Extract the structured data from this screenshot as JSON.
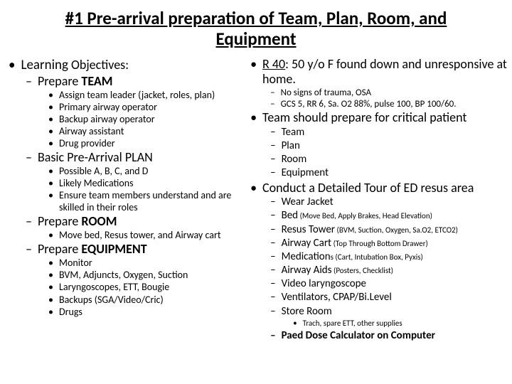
{
  "title": "#1 Pre-arrival preparation of Team, Plan, Room, and Equipment",
  "left": {
    "heading_prefix": "Learning",
    "heading_suffix": " Objectives:",
    "team": {
      "label_prefix": "Prepare ",
      "label_bold": "TEAM",
      "items": [
        "Assign team leader (jacket, roles, plan)",
        "Primary airway operator",
        "Backup airway operator",
        "Airway assistant",
        "Drug provider"
      ]
    },
    "plan": {
      "label": "Basic Pre-Arrival PLAN",
      "items": [
        "Possible A, B, C, and D",
        "Likely Medications",
        "Ensure team members understand and are skilled in their roles"
      ]
    },
    "room": {
      "label_prefix": "Prepare ",
      "label_bold": "ROOM",
      "items": [
        "Move bed, Resus tower, and Airway cart"
      ]
    },
    "equip": {
      "label_prefix": "Prepare ",
      "label_bold": "EQUIPMENT",
      "items": [
        "Monitor",
        "BVM, Adjuncts, Oxygen, Suction",
        "Laryngoscopes, ETT, Bougie",
        "Backups (SGA/Video/Cric)",
        "Drugs"
      ]
    }
  },
  "right": {
    "case": {
      "label_u": "R 40",
      "label_rest": ": 50 y/o F found down and unresponsive at home.",
      "subs": [
        "No signs of trauma, OSA",
        "GCS 5, RR 6, Sa. O2 88%, pulse 100, BP 100/60."
      ]
    },
    "prepare": {
      "label": "Team should prepare for critical patient",
      "subs": [
        "Team",
        "Plan",
        "Room",
        "Equipment"
      ]
    },
    "tour": {
      "label": "Conduct a Detailed Tour of ED resus area",
      "items": [
        {
          "main": "Wear Jacket",
          "paren": ""
        },
        {
          "main": "Bed",
          "paren": " (Move Bed, Apply Brakes, Head Elevation)"
        },
        {
          "main": "Resus Tower",
          "paren": " (BVM, Suction, Oxygen, Sa.O2, ETCO2)"
        },
        {
          "main": "Airway Cart",
          "paren": " (Top Through Bottom Drawer)"
        },
        {
          "main": "Medication",
          "paren": "s (Cart, Intubation Box, Pyxis)"
        },
        {
          "main": "Airway Aids",
          "paren": " (Posters, Checklist)"
        },
        {
          "main": "Video laryngoscope",
          "paren": ""
        },
        {
          "main": "Ventilators, CPAP/Bi.Level",
          "paren": ""
        },
        {
          "main": "Store Room",
          "paren": ""
        }
      ],
      "store_sub": "Trach, spare ETT, other supplies",
      "paed": "Paed Dose Calculator on Computer"
    }
  }
}
